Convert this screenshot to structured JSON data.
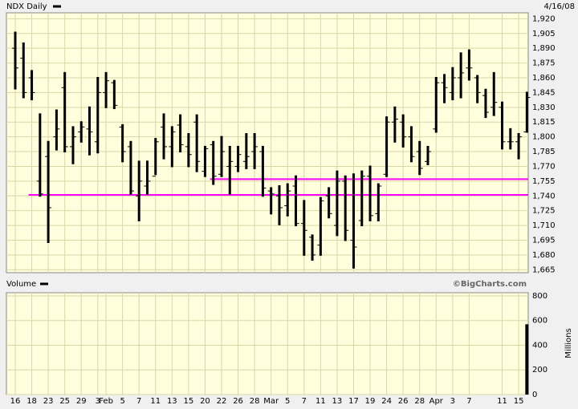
{
  "chart_data": [
    {
      "type": "ohlc",
      "title": "NDX Daily",
      "date": "4/16/08",
      "credit": "©BigCharts.com",
      "color": "#000000",
      "grid": true,
      "open": [
        1890,
        1880,
        1860,
        1755,
        1780,
        1800,
        1850,
        1790,
        1805,
        1808,
        1795,
        1845,
        1855,
        1810,
        1790,
        1740,
        1750,
        1760,
        1810,
        1790,
        1812,
        1790,
        1815,
        1765,
        1792,
        1762,
        1770,
        1770,
        1775,
        1785,
        1785,
        1745,
        1740,
        1730,
        1750,
        1712,
        1698,
        1690,
        1740,
        1710,
        1755,
        1695,
        1715,
        1760,
        1722,
        1762,
        1815,
        1815,
        1800,
        1785,
        1775,
        1808,
        1855,
        1845,
        1860,
        1870,
        1860,
        1842,
        1830,
        1830,
        1795,
        1795,
        1805
      ],
      "high": [
        1906,
        1895,
        1867,
        1823,
        1795,
        1827,
        1865,
        1810,
        1815,
        1830,
        1860,
        1865,
        1857,
        1812,
        1795,
        1775,
        1775,
        1798,
        1823,
        1810,
        1822,
        1803,
        1822,
        1790,
        1795,
        1800,
        1790,
        1790,
        1803,
        1803,
        1790,
        1748,
        1750,
        1752,
        1760,
        1735,
        1700,
        1738,
        1748,
        1765,
        1760,
        1762,
        1765,
        1770,
        1752,
        1820,
        1830,
        1822,
        1810,
        1795,
        1790,
        1860,
        1863,
        1870,
        1885,
        1888,
        1862,
        1848,
        1865,
        1835,
        1808,
        1803,
        1845
      ],
      "low": [
        1849,
        1840,
        1838,
        1740,
        1693,
        1787,
        1785,
        1773,
        1795,
        1782,
        1784,
        1830,
        1829,
        1775,
        1742,
        1715,
        1742,
        1762,
        1778,
        1770,
        1785,
        1770,
        1765,
        1760,
        1752,
        1760,
        1742,
        1765,
        1768,
        1768,
        1740,
        1722,
        1711,
        1720,
        1710,
        1680,
        1675,
        1680,
        1718,
        1700,
        1695,
        1667,
        1710,
        1715,
        1715,
        1760,
        1795,
        1790,
        1775,
        1762,
        1772,
        1805,
        1835,
        1838,
        1840,
        1858,
        1835,
        1820,
        1822,
        1788,
        1788,
        1778,
        1805
      ],
      "close": [
        1870,
        1845,
        1845,
        1742,
        1728,
        1808,
        1790,
        1800,
        1810,
        1805,
        1845,
        1857,
        1832,
        1785,
        1745,
        1755,
        1755,
        1795,
        1790,
        1805,
        1792,
        1782,
        1775,
        1788,
        1760,
        1785,
        1775,
        1782,
        1780,
        1790,
        1748,
        1742,
        1728,
        1745,
        1712,
        1705,
        1680,
        1735,
        1722,
        1755,
        1705,
        1688,
        1760,
        1720,
        1750,
        1815,
        1818,
        1800,
        1780,
        1768,
        1785,
        1855,
        1850,
        1860,
        1865,
        1870,
        1845,
        1825,
        1835,
        1795,
        1795,
        1800,
        1840
      ],
      "hlines": [
        {
          "value": 1741,
          "start": 2,
          "color": "#ff00ff"
        },
        {
          "value": 1757,
          "start": 24,
          "color": "#ff00ff"
        }
      ],
      "ylim": [
        1662,
        1926
      ],
      "yticks": [
        {
          "value": 1665,
          "label": "1,665"
        },
        {
          "value": 1680,
          "label": "1,680"
        },
        {
          "value": 1695,
          "label": "1,695"
        },
        {
          "value": 1710,
          "label": "1,710"
        },
        {
          "value": 1725,
          "label": "1,725"
        },
        {
          "value": 1740,
          "label": "1,740"
        },
        {
          "value": 1755,
          "label": "1,755"
        },
        {
          "value": 1770,
          "label": "1,770"
        },
        {
          "value": 1785,
          "label": "1,785"
        },
        {
          "value": 1800,
          "label": "1,800"
        },
        {
          "value": 1815,
          "label": "1,815"
        },
        {
          "value": 1830,
          "label": "1,830"
        },
        {
          "value": 1845,
          "label": "1,845"
        },
        {
          "value": 1860,
          "label": "1,860"
        },
        {
          "value": 1875,
          "label": "1,875"
        },
        {
          "value": 1890,
          "label": "1,890"
        },
        {
          "value": 1905,
          "label": "1,905"
        },
        {
          "value": 1920,
          "label": "1,920"
        }
      ]
    },
    {
      "type": "bar",
      "title": "Volume",
      "ylabel": "Millions",
      "color": "#000000",
      "grid": true,
      "categories": [
        "16",
        null,
        "18",
        null,
        "23",
        null,
        "25",
        null,
        "29",
        null,
        "3",
        "Feb",
        null,
        "5",
        null,
        "7",
        null,
        "11",
        null,
        "13",
        null,
        "15",
        null,
        "20",
        null,
        "22",
        null,
        "26",
        null,
        "28",
        null,
        "Mar",
        null,
        "5",
        null,
        "7",
        null,
        "11",
        null,
        "13",
        null,
        "17",
        null,
        "19",
        null,
        "24",
        null,
        "26",
        null,
        "28",
        null,
        "Apr",
        null,
        "3",
        null,
        "7",
        null,
        null,
        null,
        "11",
        null,
        "15",
        null
      ],
      "values": [
        null,
        null,
        null,
        null,
        null,
        null,
        null,
        null,
        null,
        null,
        null,
        null,
        null,
        null,
        null,
        null,
        null,
        null,
        null,
        null,
        null,
        null,
        null,
        null,
        null,
        null,
        null,
        null,
        null,
        null,
        null,
        null,
        null,
        null,
        null,
        null,
        null,
        null,
        null,
        null,
        null,
        null,
        null,
        null,
        null,
        null,
        null,
        null,
        null,
        null,
        null,
        null,
        null,
        null,
        null,
        null,
        null,
        null,
        null,
        null,
        null,
        null,
        570
      ],
      "ylim": [
        0,
        826
      ],
      "yticks": [
        0,
        200,
        400,
        600,
        800
      ]
    }
  ]
}
